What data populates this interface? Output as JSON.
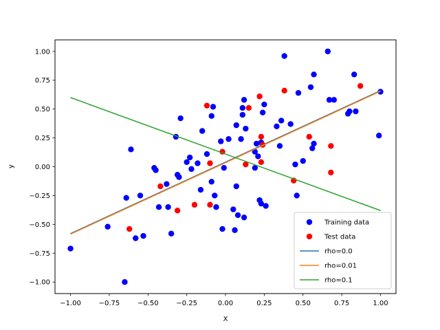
{
  "chart_data": {
    "type": "scatter",
    "xlabel": "X",
    "ylabel": "y",
    "xlim": [
      -1.1,
      1.1
    ],
    "ylim": [
      -1.1,
      1.1
    ],
    "x_ticks": [
      -1.0,
      -0.75,
      -0.5,
      -0.25,
      0.0,
      0.25,
      0.5,
      0.75,
      1.0
    ],
    "x_tick_labels": [
      "−1.00",
      "−0.75",
      "−0.50",
      "−0.25",
      "0.00",
      "0.25",
      "0.50",
      "0.75",
      "1.00"
    ],
    "y_ticks": [
      -1.0,
      -0.75,
      -0.5,
      -0.25,
      0.0,
      0.25,
      0.5,
      0.75,
      1.0
    ],
    "y_tick_labels": [
      "−1.00",
      "−0.75",
      "−0.50",
      "−0.25",
      "0.00",
      "0.25",
      "0.50",
      "0.75",
      "1.00"
    ],
    "grid": false,
    "legend_position": "lower-right",
    "scatter_series": [
      {
        "name": "Training data",
        "color": "#0000ff",
        "points": [
          [
            -1.0,
            -0.71
          ],
          [
            -0.76,
            -0.52
          ],
          [
            -0.65,
            -1.0
          ],
          [
            -0.64,
            -0.27
          ],
          [
            -0.61,
            0.15
          ],
          [
            -0.58,
            -0.62
          ],
          [
            -0.55,
            -0.25
          ],
          [
            -0.53,
            -0.6
          ],
          [
            -0.46,
            -0.01
          ],
          [
            -0.45,
            -0.03
          ],
          [
            -0.43,
            -0.35
          ],
          [
            -0.38,
            -0.15
          ],
          [
            -0.37,
            -0.35
          ],
          [
            -0.35,
            -0.58
          ],
          [
            -0.32,
            0.26
          ],
          [
            -0.31,
            -0.07
          ],
          [
            -0.3,
            -0.09
          ],
          [
            -0.29,
            0.42
          ],
          [
            -0.25,
            0.04
          ],
          [
            -0.23,
            0.08
          ],
          [
            -0.22,
            -0.02
          ],
          [
            -0.18,
            0.03
          ],
          [
            -0.16,
            -0.2
          ],
          [
            -0.15,
            0.31
          ],
          [
            -0.12,
            0.11
          ],
          [
            -0.09,
            0.44
          ],
          [
            -0.09,
            -0.13
          ],
          [
            -0.08,
            0.52
          ],
          [
            -0.07,
            -0.25
          ],
          [
            -0.06,
            -0.35
          ],
          [
            -0.03,
            0.22
          ],
          [
            -0.02,
            -0.54
          ],
          [
            -0.01,
            -0.01
          ],
          [
            0.02,
            0.24
          ],
          [
            0.05,
            -0.37
          ],
          [
            0.06,
            -0.55
          ],
          [
            0.07,
            0.36
          ],
          [
            0.07,
            -0.17
          ],
          [
            0.08,
            -0.42
          ],
          [
            0.1,
            0.24
          ],
          [
            0.11,
            0.45
          ],
          [
            0.11,
            0.51
          ],
          [
            0.12,
            0.58
          ],
          [
            0.12,
            -0.44
          ],
          [
            0.13,
            0.33
          ],
          [
            0.19,
            -0.01
          ],
          [
            0.19,
            0.13
          ],
          [
            0.2,
            0.2
          ],
          [
            0.21,
            0.09
          ],
          [
            0.22,
            -0.29
          ],
          [
            0.23,
            0.21
          ],
          [
            0.23,
            -0.32
          ],
          [
            0.24,
            0.47
          ],
          [
            0.25,
            0.54
          ],
          [
            0.26,
            -0.34
          ],
          [
            0.33,
            0.35
          ],
          [
            0.35,
            0.18
          ],
          [
            0.36,
            0.4
          ],
          [
            0.38,
            0.96
          ],
          [
            0.42,
            0.37
          ],
          [
            0.45,
            0.02
          ],
          [
            0.46,
            -0.25
          ],
          [
            0.47,
            0.64
          ],
          [
            0.5,
            0.05
          ],
          [
            0.55,
            0.69
          ],
          [
            0.56,
            0.16
          ],
          [
            0.57,
            0.8
          ],
          [
            0.57,
            0.2
          ],
          [
            0.66,
            1.0
          ],
          [
            0.67,
            0.58
          ],
          [
            0.7,
            0.58
          ],
          [
            0.79,
            0.46
          ],
          [
            0.8,
            0.48
          ],
          [
            0.83,
            0.8
          ],
          [
            0.84,
            0.48
          ],
          [
            0.99,
            0.27
          ],
          [
            1.0,
            0.65
          ]
        ]
      },
      {
        "name": "Test data",
        "color": "#ff0000",
        "points": [
          [
            -0.62,
            -0.54
          ],
          [
            -0.42,
            -0.17
          ],
          [
            -0.31,
            -0.38
          ],
          [
            -0.2,
            -0.33
          ],
          [
            -0.12,
            0.53
          ],
          [
            -0.1,
            0.03
          ],
          [
            -0.1,
            -0.33
          ],
          [
            -0.02,
            0.13
          ],
          [
            0.13,
            0.02
          ],
          [
            0.15,
            0.51
          ],
          [
            0.22,
            0.61
          ],
          [
            0.23,
            0.26
          ],
          [
            0.23,
            0.04
          ],
          [
            0.24,
            0.19
          ],
          [
            0.38,
            0.66
          ],
          [
            0.44,
            -0.12
          ],
          [
            0.54,
            0.26
          ],
          [
            0.68,
            -0.05
          ],
          [
            0.68,
            0.18
          ],
          [
            0.87,
            0.7
          ]
        ]
      }
    ],
    "line_series": [
      {
        "name": "rho=0.0",
        "color": "#1f77b4",
        "x": [
          -1.0,
          1.0
        ],
        "y": [
          -0.58,
          0.66
        ]
      },
      {
        "name": "rho=0.01",
        "color": "#ff7f0e",
        "x": [
          -1.0,
          1.0
        ],
        "y": [
          -0.585,
          0.655
        ]
      },
      {
        "name": "rho=0.1",
        "color": "#2ca02c",
        "x": [
          -1.0,
          1.0
        ],
        "y": [
          0.6,
          -0.38
        ]
      }
    ]
  }
}
